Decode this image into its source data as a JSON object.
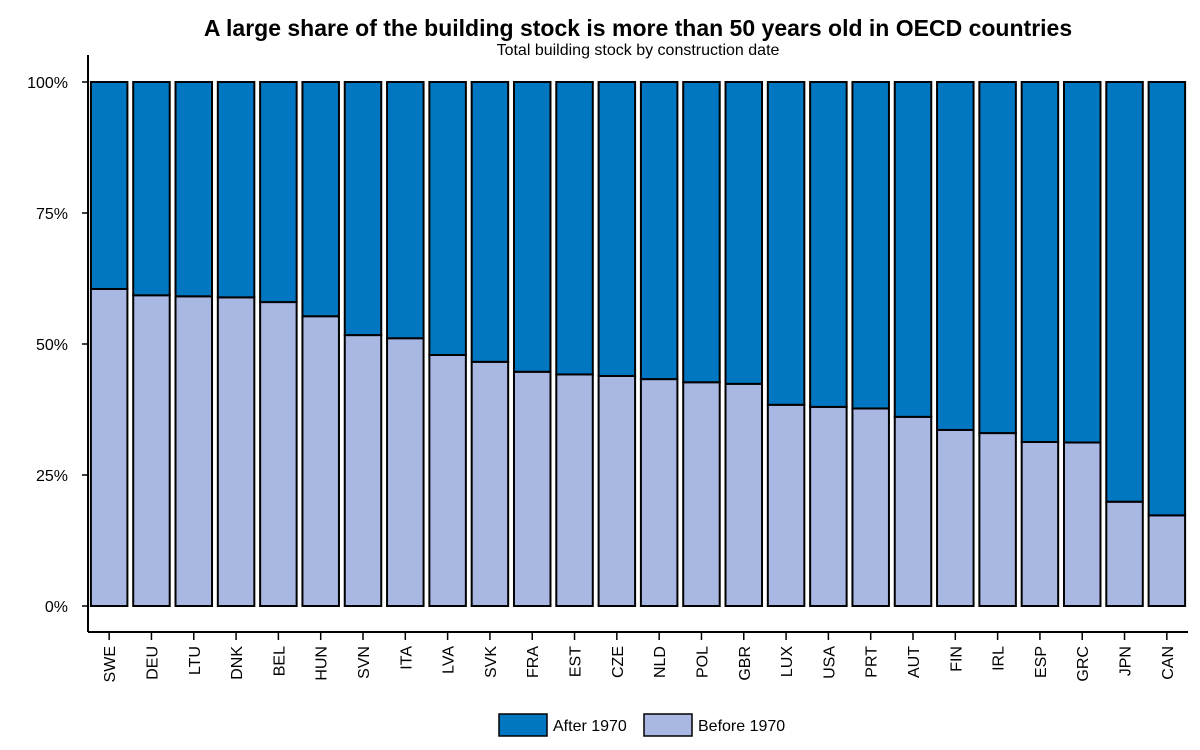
{
  "chart_data": {
    "type": "bar",
    "stacked": true,
    "title": "A large share of the building stock is more than 50 years old in OECD countries",
    "subtitle": "Total building stock by construction date",
    "xlabel": "",
    "ylabel": "",
    "ylim": [
      0,
      100
    ],
    "yticks": [
      "0%",
      "25%",
      "50%",
      "75%",
      "100%"
    ],
    "ytick_values": [
      0,
      25,
      50,
      75,
      100
    ],
    "grid": false,
    "legend_position": "bottom-center",
    "categories": [
      "SWE",
      "DEU",
      "LTU",
      "DNK",
      "BEL",
      "HUN",
      "SVN",
      "ITA",
      "LVA",
      "SVK",
      "FRA",
      "EST",
      "CZE",
      "NLD",
      "POL",
      "GBR",
      "LUX",
      "USA",
      "PRT",
      "AUT",
      "FIN",
      "IRL",
      "ESP",
      "GRC",
      "JPN",
      "CAN"
    ],
    "series": [
      {
        "name": "Before 1970",
        "color": "#a9b8e2",
        "values": [
          60.5,
          59.3,
          59.1,
          58.9,
          58.0,
          55.3,
          51.7,
          51.1,
          47.9,
          46.6,
          44.7,
          44.2,
          43.9,
          43.3,
          42.7,
          42.4,
          38.4,
          38.0,
          37.7,
          36.1,
          33.6,
          33.0,
          31.3,
          31.2,
          19.9,
          17.3
        ]
      },
      {
        "name": "After 1970",
        "color": "#0277c1",
        "values": [
          39.5,
          40.7,
          40.9,
          41.1,
          42.0,
          44.7,
          48.3,
          48.9,
          52.1,
          53.4,
          55.3,
          55.8,
          56.1,
          56.7,
          57.3,
          57.6,
          61.6,
          62.0,
          62.3,
          63.9,
          66.4,
          67.0,
          68.7,
          68.8,
          80.1,
          82.7
        ]
      }
    ],
    "legend": [
      "After 1970",
      "Before 1970"
    ]
  }
}
